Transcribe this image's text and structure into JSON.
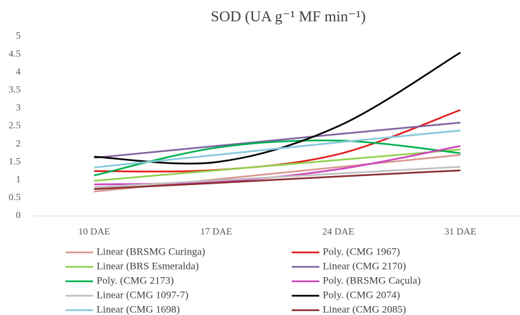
{
  "chart_data": {
    "type": "line",
    "title": "SOD (UA g⁻¹ MF min⁻¹)",
    "categories": [
      "10 DAE",
      "17 DAE",
      "24 DAE",
      "31 DAE"
    ],
    "ylim": [
      0,
      5
    ],
    "yticks": [
      0,
      0.5,
      1,
      1.5,
      2,
      2.5,
      3,
      3.5,
      4,
      4.5,
      5
    ],
    "series": [
      {
        "name": "Linear (BRSMG Curinga)",
        "color": "#d99690",
        "values": [
          0.68,
          1.02,
          1.36,
          1.7
        ]
      },
      {
        "name": "Poly. (CMG 1967)",
        "color": "#e41a1c",
        "values": [
          1.25,
          1.28,
          1.72,
          2.95
        ]
      },
      {
        "name": "Linear (BRS Esmeralda)",
        "color": "#92d050",
        "values": [
          0.98,
          1.27,
          1.56,
          1.85
        ]
      },
      {
        "name": "Linear (CMG 2170)",
        "color": "#8064a2",
        "values": [
          1.62,
          1.95,
          2.28,
          2.6
        ]
      },
      {
        "name": "Poly. (CMG 2173)",
        "color": "#00b050",
        "values": [
          1.13,
          1.9,
          2.1,
          1.75
        ]
      },
      {
        "name": "Poly. (BRSMG Caçula)",
        "color": "#cc44bb",
        "values": [
          0.88,
          0.95,
          1.3,
          1.95
        ]
      },
      {
        "name": "Linear (CMG 1097-7)",
        "color": "#bfbfbf",
        "values": [
          0.8,
          0.99,
          1.18,
          1.37
        ]
      },
      {
        "name": "Poly. (CMG 2074)",
        "color": "#000000",
        "values": [
          1.65,
          1.5,
          2.5,
          4.55
        ]
      },
      {
        "name": "Linear (CMG 1698)",
        "color": "#86c8dc",
        "values": [
          1.35,
          1.7,
          2.05,
          2.38
        ]
      },
      {
        "name": "Linear (CMG 2085)",
        "color": "#8b2e2e",
        "values": [
          0.75,
          0.92,
          1.1,
          1.27
        ]
      }
    ]
  }
}
